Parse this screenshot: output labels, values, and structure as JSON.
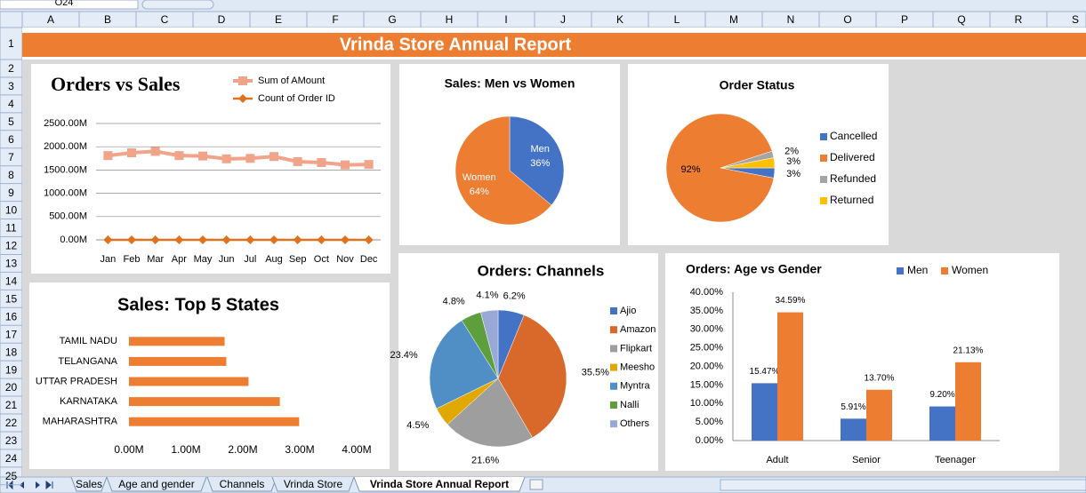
{
  "name_box": "O24",
  "columns": [
    "A",
    "B",
    "C",
    "D",
    "E",
    "F",
    "G",
    "H",
    "I",
    "J",
    "K",
    "L",
    "M",
    "N",
    "O",
    "P",
    "Q",
    "R",
    "S"
  ],
  "rows": [
    1,
    2,
    3,
    4,
    5,
    6,
    7,
    8,
    9,
    10,
    11,
    12,
    13,
    14,
    15,
    16,
    17,
    18,
    19,
    20,
    21,
    22,
    23,
    24,
    25
  ],
  "banner": "Vrinda Store Annual Report",
  "sheet_tabs": [
    "Sales",
    "Age and gender",
    "Channels",
    "Vrinda Store",
    "Vrinda Store Annual Report"
  ],
  "chart_data": [
    {
      "type": "line",
      "title": "Orders vs Sales",
      "categories": [
        "Jan",
        "Feb",
        "Mar",
        "Apr",
        "May",
        "Jun",
        "Jul",
        "Aug",
        "Sep",
        "Oct",
        "Nov",
        "Dec"
      ],
      "series": [
        {
          "name": "Sum of AMount",
          "color": "#f2a48a",
          "values": [
            1810,
            1870,
            1900,
            1810,
            1800,
            1740,
            1750,
            1790,
            1680,
            1660,
            1610,
            1620
          ]
        },
        {
          "name": "Count of Order ID",
          "color": "#e0711f",
          "values": [
            0.003,
            0.003,
            0.003,
            0.003,
            0.003,
            0.003,
            0.003,
            0.003,
            0.003,
            0.003,
            0.003,
            0.003
          ]
        }
      ],
      "ylim": [
        0,
        2500
      ],
      "yticks": [
        {
          "value": 0,
          "label": "0.00M"
        },
        {
          "value": 500,
          "label": "500.00M"
        },
        {
          "value": 1000,
          "label": "1000.00M"
        },
        {
          "value": 1500,
          "label": "1500.00M"
        },
        {
          "value": 2000,
          "label": "2000.00M"
        },
        {
          "value": 2500,
          "label": "2500.00M"
        }
      ],
      "grid": true,
      "legend": "top-right"
    },
    {
      "type": "pie",
      "title": "Sales: Men vs Women",
      "categories": [
        "Men",
        "Women"
      ],
      "values": [
        36,
        64
      ],
      "value_labels": [
        "36%",
        "64%"
      ],
      "colors": [
        "#4472c4",
        "#ed7d31"
      ],
      "labels": "inside"
    },
    {
      "type": "pie",
      "title": "Order Status",
      "categories": [
        "Cancelled",
        "Delivered",
        "Refunded",
        "Returned"
      ],
      "values": [
        3,
        92,
        2,
        3
      ],
      "value_labels": [
        "3%",
        "92%",
        "2%",
        "3%"
      ],
      "colors": [
        "#4472c4",
        "#ed7d31",
        "#a5a5a5",
        "#ffc000"
      ],
      "labels": "outside",
      "legend": "right"
    },
    {
      "type": "bar",
      "orientation": "horizontal",
      "title": "Sales: Top 5 States",
      "categories": [
        "TAMIL NADU",
        "TELANGANA",
        "UTTAR PRADESH",
        "KARNATAKA",
        "MAHARASHTRA"
      ],
      "values": [
        1.68,
        1.71,
        2.1,
        2.65,
        2.99
      ],
      "color": "#ed7d31",
      "xlim": [
        0,
        4
      ],
      "xticks": [
        {
          "value": 0,
          "label": "0.00M"
        },
        {
          "value": 1,
          "label": "1.00M"
        },
        {
          "value": 2,
          "label": "2.00M"
        },
        {
          "value": 3,
          "label": "3.00M"
        },
        {
          "value": 4,
          "label": "4.00M"
        }
      ],
      "grid": false
    },
    {
      "type": "pie",
      "title": "Orders: Channels",
      "categories": [
        "Ajio",
        "Amazon",
        "Flipkart",
        "Meesho",
        "Myntra",
        "Nalli",
        "Others"
      ],
      "values": [
        6.2,
        35.5,
        21.6,
        4.5,
        23.4,
        4.8,
        4.1
      ],
      "value_labels": [
        "6.2%",
        "35.5%",
        "21.6%",
        "4.5%",
        "23.4%",
        "4.8%",
        "4.1%"
      ],
      "colors": [
        "#4472c4",
        "#d8692a",
        "#9e9e9e",
        "#e0a800",
        "#4f8fc6",
        "#5f9e3c",
        "#98a9d8"
      ],
      "labels": "outside",
      "legend": "right"
    },
    {
      "type": "bar",
      "orientation": "vertical",
      "title": "Orders: Age vs Gender",
      "categories": [
        "Adult",
        "Senior",
        "Teenager"
      ],
      "series": [
        {
          "name": "Men",
          "color": "#4472c4",
          "values": [
            15.47,
            5.91,
            9.2
          ],
          "value_labels": [
            "15.47%",
            "5.91%",
            "9.20%"
          ]
        },
        {
          "name": "Women",
          "color": "#ed7d31",
          "values": [
            34.59,
            13.7,
            21.13
          ],
          "value_labels": [
            "34.59%",
            "13.70%",
            "21.13%"
          ]
        }
      ],
      "ylim": [
        0,
        40
      ],
      "yticks": [
        {
          "value": 0,
          "label": "0.00%"
        },
        {
          "value": 5,
          "label": "5.00%"
        },
        {
          "value": 10,
          "label": "10.00%"
        },
        {
          "value": 15,
          "label": "15.00%"
        },
        {
          "value": 20,
          "label": "20.00%"
        },
        {
          "value": 25,
          "label": "25.00%"
        },
        {
          "value": 30,
          "label": "30.00%"
        },
        {
          "value": 35,
          "label": "35.00%"
        },
        {
          "value": 40,
          "label": "40.00%"
        }
      ],
      "grid": false,
      "legend": "top-right"
    }
  ]
}
